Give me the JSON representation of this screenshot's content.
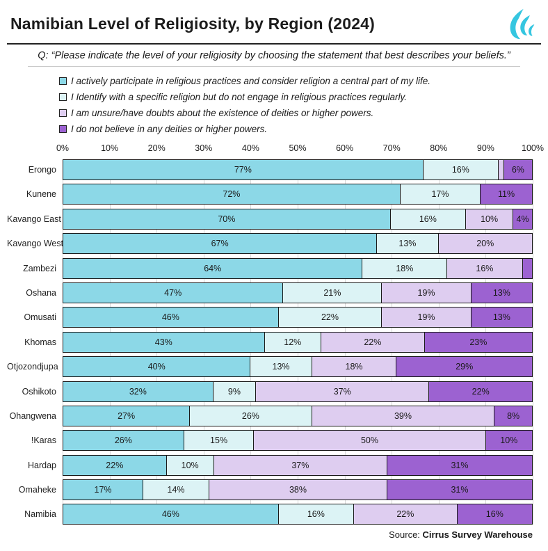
{
  "header": {
    "title": "Namibian Level of Religiosity, by Region (2024)",
    "question": "Q: “Please indicate the level of your religiosity by choosing the statement that best describes your beliefs.”"
  },
  "legend": [
    {
      "label": "I actively participate in religious practices and consider religion a central part of my life.",
      "color": "#8CD8E7"
    },
    {
      "label": "I Identify with a specific religion but do not engage in religious practices regularly.",
      "color": "#DCF3F5"
    },
    {
      "label": "I am unsure/have doubts about the existence of deities or higher powers.",
      "color": "#DECDF0"
    },
    {
      "label": "I do not believe in any deities or higher powers.",
      "color": "#9C62D1"
    }
  ],
  "axis": {
    "ticks": [
      "0%",
      "10%",
      "20%",
      "30%",
      "40%",
      "50%",
      "60%",
      "70%",
      "80%",
      "90%",
      "100%"
    ]
  },
  "chart_data": {
    "type": "bar",
    "stacked": true,
    "orientation": "horizontal",
    "xlim": [
      0,
      100
    ],
    "grid": true,
    "legend_position": "top",
    "categories": [
      "Erongo",
      "Kunene",
      "Kavango East",
      "Kavango West",
      "Zambezi",
      "Oshana",
      "Omusati",
      "Khomas",
      "Otjozondjupa",
      "Oshikoto",
      "Ohangwena",
      "!Karas",
      "Hardap",
      "Omaheke",
      "Namibia"
    ],
    "series": [
      {
        "name": "I actively participate in religious practices and consider religion a central part of my life.",
        "color": "#8CD8E7",
        "values": [
          77,
          72,
          70,
          67,
          64,
          47,
          46,
          43,
          40,
          32,
          27,
          26,
          22,
          17,
          46
        ]
      },
      {
        "name": "I Identify with a specific religion but do not engage in religious practices regularly.",
        "color": "#DCF3F5",
        "values": [
          16,
          17,
          16,
          13,
          18,
          21,
          22,
          12,
          13,
          9,
          26,
          15,
          10,
          14,
          16
        ]
      },
      {
        "name": "I am unsure/have doubts about the existence of deities or higher powers.",
        "color": "#DECDF0",
        "values": [
          1,
          0,
          10,
          20,
          16,
          19,
          19,
          22,
          18,
          37,
          39,
          50,
          37,
          38,
          22
        ]
      },
      {
        "name": "I do not believe in any deities or higher powers.",
        "color": "#9C62D1",
        "values": [
          6,
          11,
          4,
          0,
          2,
          13,
          13,
          23,
          29,
          22,
          8,
          10,
          31,
          31,
          16
        ]
      }
    ],
    "label_min_value_shown": 4,
    "value_suffix": "%"
  },
  "logo": {
    "name": "cirrus-swoosh-logo",
    "color": "#35C6E0"
  },
  "footer": {
    "source_prefix": "Source: ",
    "source_name": "Cirrus Survey Warehouse"
  }
}
